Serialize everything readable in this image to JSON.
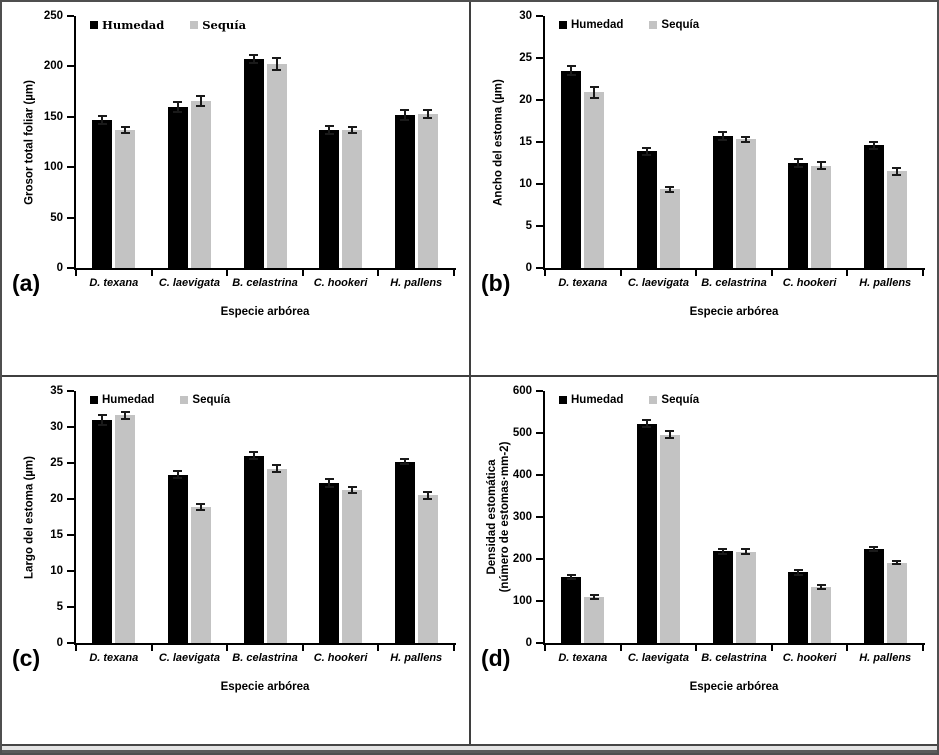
{
  "figure": {
    "background": "#ffffff",
    "border_color": "#4f4f4f",
    "bar_black": "#000000",
    "bar_gray": "#c3c3c3"
  },
  "chart_data": [
    {
      "type": "bar",
      "panel_label": "(a)",
      "ylabel_lines": [
        "Grosor total foliar (µm)"
      ],
      "xlabel": "Especie arbórea",
      "ylim": [
        0,
        250
      ],
      "yticks": [
        0,
        50,
        100,
        150,
        200,
        250
      ],
      "categories": [
        "D. texana",
        "C. laevigata",
        "B. celastrina",
        "C. hookeri",
        "H. pallens"
      ],
      "series": [
        {
          "name": "Humedad",
          "color": "#000000",
          "values": [
            147,
            160,
            207,
            137,
            152
          ],
          "errors": [
            4,
            5,
            4,
            4,
            5
          ]
        },
        {
          "name": "Sequía",
          "color": "#c3c3c3",
          "values": [
            137,
            166,
            202,
            137,
            153
          ],
          "errors": [
            3,
            5,
            6,
            3,
            4
          ]
        }
      ],
      "legend_position": "top-left",
      "legend_font": "serif",
      "grid": false
    },
    {
      "type": "bar",
      "panel_label": "(b)",
      "ylabel_lines": [
        "Ancho del estoma (µm)"
      ],
      "xlabel": "Especie arbórea",
      "ylim": [
        0,
        30
      ],
      "yticks": [
        0,
        5,
        10,
        15,
        20,
        25,
        30
      ],
      "categories": [
        "D. texana",
        "C. laevigata",
        "B. celastrina",
        "C. hookeri",
        "H. pallens"
      ],
      "series": [
        {
          "name": "Humedad",
          "color": "#000000",
          "values": [
            23.5,
            13.9,
            15.7,
            12.5,
            14.6
          ],
          "errors": [
            0.5,
            0.4,
            0.5,
            0.5,
            0.4
          ]
        },
        {
          "name": "Sequía",
          "color": "#c3c3c3",
          "values": [
            20.9,
            9.4,
            15.3,
            12.2,
            11.5
          ],
          "errors": [
            0.7,
            0.3,
            0.3,
            0.4,
            0.4
          ]
        }
      ],
      "legend_position": "top-left",
      "legend_font": "sans",
      "grid": false
    },
    {
      "type": "bar",
      "panel_label": "(c)",
      "ylabel_lines": [
        "Largo del estoma (µm)"
      ],
      "xlabel": "Especie arbórea",
      "ylim": [
        0,
        35
      ],
      "yticks": [
        0,
        5,
        10,
        15,
        20,
        25,
        30,
        35
      ],
      "categories": [
        "D. texana",
        "C. laevigata",
        "B. celastrina",
        "C. hookeri",
        "H. pallens"
      ],
      "series": [
        {
          "name": "Humedad",
          "color": "#000000",
          "values": [
            31.0,
            23.4,
            26.0,
            22.2,
            25.2
          ],
          "errors": [
            0.7,
            0.5,
            0.5,
            0.6,
            0.4
          ]
        },
        {
          "name": "Sequía",
          "color": "#c3c3c3",
          "values": [
            31.6,
            18.9,
            24.2,
            21.2,
            20.5
          ],
          "errors": [
            0.5,
            0.4,
            0.5,
            0.4,
            0.5
          ]
        }
      ],
      "legend_position": "top-left",
      "legend_font": "sans",
      "grid": false
    },
    {
      "type": "bar",
      "panel_label": "(d)",
      "ylabel_lines": [
        "Densidad estomática",
        "(número de estomas·mm-2)"
      ],
      "xlabel": "Especie arbórea",
      "ylim": [
        0,
        600
      ],
      "yticks": [
        0,
        100,
        200,
        300,
        400,
        500,
        600
      ],
      "categories": [
        "D. texana",
        "C. laevigata",
        "B. celastrina",
        "C. hookeri",
        "H. pallens"
      ],
      "series": [
        {
          "name": "Humedad",
          "color": "#000000",
          "values": [
            158,
            522,
            218,
            168,
            224
          ],
          "errors": [
            5,
            8,
            5,
            5,
            5
          ]
        },
        {
          "name": "Sequía",
          "color": "#c3c3c3",
          "values": [
            110,
            496,
            217,
            133,
            191
          ],
          "errors": [
            5,
            9,
            6,
            4,
            4
          ]
        }
      ],
      "legend_position": "top-left",
      "legend_font": "sans",
      "grid": false
    }
  ]
}
